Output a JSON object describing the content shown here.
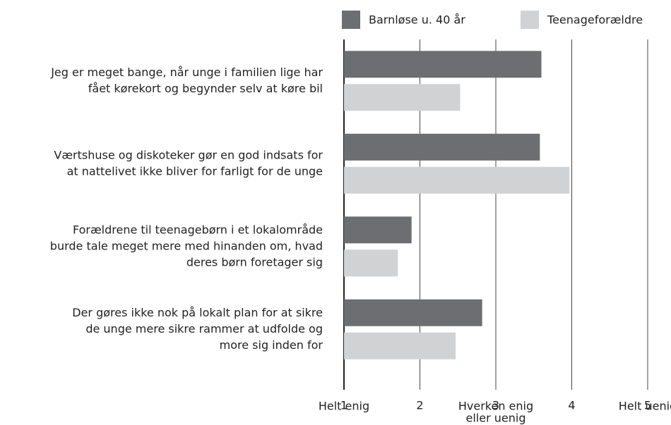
{
  "chart_data": {
    "type": "bar",
    "orientation": "horizontal",
    "categories": [
      [
        "Jeg er meget bange, når unge i familien lige har",
        "fået kørekort og begynder selv at køre bil"
      ],
      [
        "Værtshuse og diskoteker gør en god indsats for",
        "at nattelivet ikke bliver for farligt for de unge"
      ],
      [
        "Forældrene til teenagebørn i et lokalområde",
        "burde tale meget mere med hinanden om, hvad",
        "deres børn foretager sig"
      ],
      [
        "Der gøres ikke nok på lokalt plan for at sikre",
        "de unge mere sikre rammer at udfolde og",
        "more sig inden for"
      ]
    ],
    "series": [
      {
        "name": "Barnløse u. 40 år",
        "color": "#6d6e71",
        "values": [
          3.6,
          3.58,
          1.89,
          2.82
        ]
      },
      {
        "name": "Teenageforældre",
        "color": "#d1d2d4",
        "values": [
          2.53,
          3.97,
          1.71,
          2.47
        ]
      }
    ],
    "xlim": [
      1,
      5
    ],
    "xticks": [
      1,
      2,
      3,
      4,
      5
    ],
    "grid": true,
    "legend": "top",
    "scale_labels": [
      {
        "value": 1,
        "lines": [
          "Helt enig"
        ]
      },
      {
        "value": 3,
        "lines": [
          "Hverken enig",
          "eller uenig"
        ]
      },
      {
        "value": 5,
        "lines": [
          "Helt uenig"
        ]
      }
    ]
  }
}
